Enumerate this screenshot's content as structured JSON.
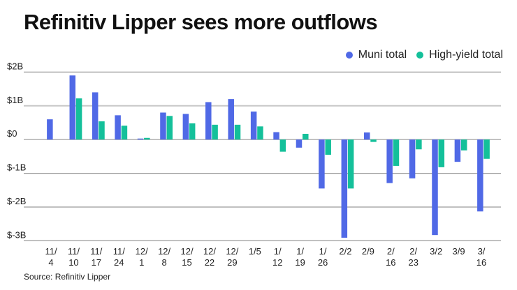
{
  "title": "Refinitiv Lipper sees more outflows",
  "source": "Source: Refinitiv Lipper",
  "legend": [
    {
      "label": "Muni total",
      "color": "#5069e6"
    },
    {
      "label": "High-yield total",
      "color": "#14c09a"
    }
  ],
  "chart_data": {
    "type": "bar",
    "title": "Refinitiv Lipper sees more outflows",
    "xlabel": "",
    "ylabel": "",
    "ylim": [
      -3,
      2
    ],
    "y_unit": "billions USD",
    "y_ticks": [
      {
        "value": 2,
        "label": "$2B"
      },
      {
        "value": 1,
        "label": "$1B"
      },
      {
        "value": 0,
        "label": "$0"
      },
      {
        "value": -1,
        "label": "$-1B"
      },
      {
        "value": -2,
        "label": "$-2B"
      },
      {
        "value": -3,
        "label": "$-3B"
      }
    ],
    "grid": true,
    "legend_position": "top-right",
    "categories": [
      [
        "11/",
        "4"
      ],
      [
        "11/",
        "10"
      ],
      [
        "11/",
        "17"
      ],
      [
        "11/",
        "24"
      ],
      [
        "12/",
        "1"
      ],
      [
        "12/",
        "8"
      ],
      [
        "12/",
        "15"
      ],
      [
        "12/",
        "22"
      ],
      [
        "12/",
        "29"
      ],
      [
        "1/5"
      ],
      [
        "1/",
        "12"
      ],
      [
        "1/",
        "19"
      ],
      [
        "1/",
        "26"
      ],
      [
        "2/2"
      ],
      [
        "2/9"
      ],
      [
        "2/",
        "16"
      ],
      [
        "2/",
        "23"
      ],
      [
        "3/2"
      ],
      [
        "3/9"
      ],
      [
        "3/",
        "16"
      ]
    ],
    "series": [
      {
        "name": "Muni total",
        "color": "#5069e6",
        "values": [
          0.6,
          1.9,
          1.4,
          0.72,
          0.03,
          0.8,
          0.76,
          1.11,
          1.2,
          0.83,
          0.22,
          -0.24,
          -1.45,
          -2.91,
          0.21,
          -1.29,
          -1.15,
          -2.83,
          -0.66,
          -2.13
        ]
      },
      {
        "name": "High-yield total",
        "color": "#14c09a",
        "values": [
          0.0,
          1.22,
          0.54,
          0.41,
          0.05,
          0.7,
          0.48,
          0.44,
          0.44,
          0.39,
          -0.36,
          0.17,
          -0.45,
          -1.45,
          -0.07,
          -0.78,
          -0.29,
          -0.82,
          -0.32,
          -0.57
        ]
      }
    ]
  }
}
